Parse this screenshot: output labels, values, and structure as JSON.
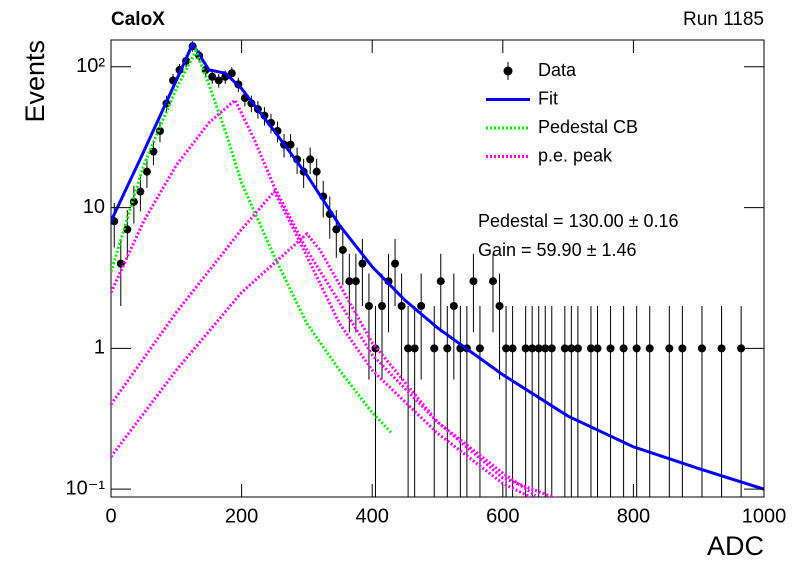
{
  "chart_data": {
    "type": "errorbar",
    "title": "CaloX",
    "subtitle": "Run 1185",
    "x_label": "ADC",
    "y_label": "Events",
    "annotations": [
      "Pedestal = 130.00 ± 0.16",
      "Gain = 59.90 ± 1.46"
    ],
    "log_y": true,
    "legend": "upper right",
    "xlim": [
      0,
      1000
    ],
    "xticks": [
      0,
      200,
      400,
      600,
      800,
      1000
    ],
    "ylim": [
      0.088,
      155
    ],
    "yticks": [
      {
        "value": 0.1,
        "label": "10⁻¹"
      },
      1,
      10,
      {
        "value": 100,
        "label": "10²"
      }
    ],
    "series": [
      {
        "name": "Data",
        "color": "#000000",
        "style": "points",
        "x": [
          5,
          15,
          25,
          35,
          45,
          55,
          65,
          75,
          85,
          95,
          105,
          115,
          125,
          135,
          145,
          155,
          165,
          175,
          185,
          195,
          205,
          215,
          225,
          235,
          245,
          255,
          265,
          275,
          285,
          295,
          305,
          315,
          325,
          335,
          345,
          355,
          365,
          375,
          385,
          395,
          405,
          415,
          425,
          435,
          445,
          455,
          465,
          475,
          485,
          495,
          505,
          515,
          525,
          535,
          545,
          555,
          565,
          575,
          585,
          595,
          605,
          615,
          625,
          635,
          645,
          655,
          665,
          675,
          685,
          695,
          705,
          715,
          725,
          735,
          745,
          755,
          765,
          775,
          785,
          795,
          805,
          815,
          825,
          835,
          845,
          855,
          865,
          875,
          885,
          895,
          905,
          915,
          925,
          935,
          945,
          955,
          965,
          975,
          985,
          995
        ],
        "values": [
          8,
          4,
          7,
          11,
          13,
          18,
          25,
          35,
          55,
          80,
          95,
          110,
          140,
          120,
          95,
          85,
          80,
          85,
          90,
          75,
          60,
          55,
          50,
          45,
          40,
          35,
          28,
          28,
          22,
          18,
          22,
          18,
          12,
          9,
          7,
          5,
          3,
          3,
          4,
          2,
          1,
          2,
          3,
          4,
          2,
          1,
          1,
          2,
          null,
          1,
          3,
          1,
          2,
          1,
          1,
          3,
          1,
          null,
          3,
          2,
          1,
          1,
          null,
          1,
          1,
          1,
          1,
          1,
          null,
          1,
          1,
          1,
          null,
          1,
          1,
          null,
          1,
          null,
          1,
          null,
          1,
          null,
          1,
          null,
          null,
          1,
          null,
          1,
          null,
          null,
          1,
          null,
          null,
          1,
          null,
          null,
          1,
          null,
          null,
          null
        ],
        "errors": [
          2.8,
          2,
          2.6,
          3.3,
          3.6,
          4.2,
          5,
          5.9,
          7.4,
          8.9,
          9.7,
          10.5,
          11.8,
          11,
          9.7,
          9.2,
          8.9,
          9.2,
          9.5,
          8.7,
          7.7,
          7.4,
          7.1,
          6.7,
          6.3,
          5.9,
          5.3,
          5.3,
          4.7,
          4.2,
          4.7,
          4.2,
          3.5,
          3,
          2.6,
          2.2,
          1.7,
          1.7,
          2,
          1.4,
          1,
          1.4,
          1.7,
          2,
          1.4,
          1,
          1,
          1.4,
          null,
          1,
          1.7,
          1,
          1.4,
          1,
          1,
          1.7,
          1,
          null,
          1.7,
          1.4,
          1,
          1,
          null,
          1,
          1,
          1,
          1,
          1,
          null,
          1,
          1,
          1,
          null,
          1,
          1,
          null,
          1,
          null,
          1,
          null,
          1,
          null,
          1,
          null,
          null,
          1,
          null,
          1,
          null,
          null,
          1,
          null,
          null,
          1,
          null,
          null,
          1,
          null,
          null,
          null
        ]
      },
      {
        "name": "Fit",
        "color": "#0000ff",
        "style": "solid",
        "curves": [
          {
            "x": [
              0,
              50,
              100,
              125,
              150,
              175,
              200,
              250,
              300,
              350,
              400,
              450,
              500,
              600,
              700,
              800,
              900,
              1000
            ],
            "values": [
              8,
              25,
              80,
              145,
              95,
              90,
              70,
              35,
              17,
              7.5,
              3.8,
              2.2,
              1.4,
              0.65,
              0.33,
              0.2,
              0.14,
              0.1
            ]
          }
        ]
      },
      {
        "name": "Pedestal CB",
        "color": "#00ee00",
        "style": "dotted",
        "curves": [
          {
            "x": [
              0,
              50,
              100,
              130,
              150,
              175,
              200,
              250,
              300,
              350,
              400,
              430
            ],
            "values": [
              3.5,
              20,
              70,
              130,
              75,
              35,
              15,
              4.5,
              1.5,
              0.7,
              0.35,
              0.25
            ]
          }
        ]
      },
      {
        "name": "p.e. peak",
        "color": "#ff00ff",
        "style": "dotted",
        "curves": [
          {
            "x": [
              0,
              50,
              100,
              150,
              190,
              220,
              250,
              300,
              400,
              500,
              600,
              650
            ],
            "values": [
              2.5,
              8,
              20,
              40,
              58,
              30,
              14,
              5,
              0.9,
              0.3,
              0.13,
              0.09
            ]
          },
          {
            "x": [
              0,
              100,
              200,
              250,
              280,
              350,
              400,
              500,
              600,
              660
            ],
            "values": [
              0.4,
              1.8,
              7,
              13,
              7,
              1.5,
              0.7,
              0.25,
              0.11,
              0.08
            ]
          },
          {
            "x": [
              0,
              100,
              200,
              300,
              320,
              400,
              500,
              600,
              700
            ],
            "values": [
              0.17,
              0.7,
              2.5,
              6.5,
              5,
              1.1,
              0.3,
              0.12,
              0.08
            ]
          }
        ]
      }
    ]
  }
}
